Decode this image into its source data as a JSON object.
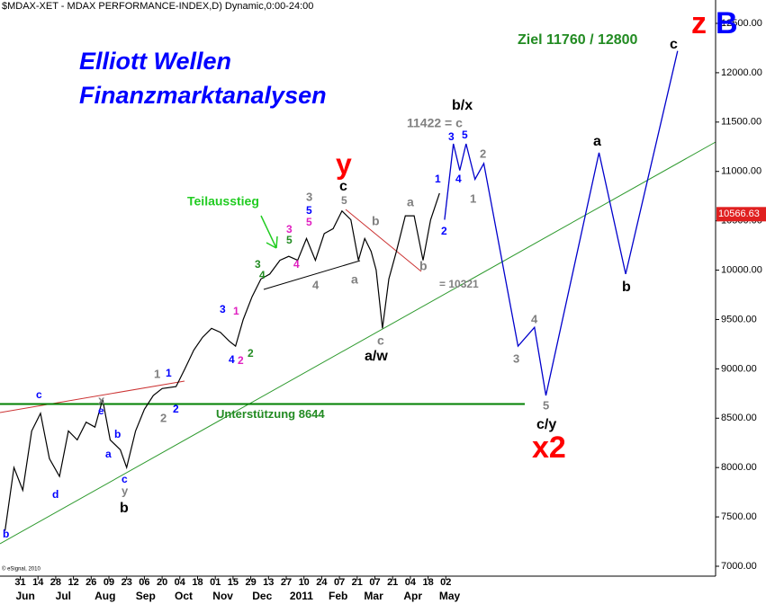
{
  "chart_data": {
    "type": "line",
    "title": "$MDAX-XET - MDAX PERFORMANCE-INDEX,D) Dynamic,0:00-24:00",
    "ylim": [
      7000,
      12500
    ],
    "yticks": [
      {
        "value": 7000,
        "label": "7000.00"
      },
      {
        "value": 7500,
        "label": "7500.00"
      },
      {
        "value": 8000,
        "label": "8000.00"
      },
      {
        "value": 8500,
        "label": "8500.00"
      },
      {
        "value": 9000,
        "label": "9000.00"
      },
      {
        "value": 9500,
        "label": "9500.00"
      },
      {
        "value": 10000,
        "label": "10000.00"
      },
      {
        "value": 10500,
        "label": "10500.00"
      },
      {
        "value": 11000,
        "label": "11000.00"
      },
      {
        "value": 11500,
        "label": "11500.00"
      },
      {
        "value": 12000,
        "label": "12000.00"
      },
      {
        "value": 12500,
        "label": "12500.00"
      }
    ],
    "xlim": [
      -16,
      549
    ],
    "xticks": [
      {
        "value": 0,
        "label": "31"
      },
      {
        "value": 14,
        "label": "14"
      },
      {
        "value": 28,
        "label": "28"
      },
      {
        "value": 42,
        "label": "12"
      },
      {
        "value": 56,
        "label": "26"
      },
      {
        "value": 70,
        "label": "09"
      },
      {
        "value": 84,
        "label": "23"
      },
      {
        "value": 98,
        "label": "06"
      },
      {
        "value": 112,
        "label": "20"
      },
      {
        "value": 126,
        "label": "04"
      },
      {
        "value": 140,
        "label": "18"
      },
      {
        "value": 154,
        "label": "01"
      },
      {
        "value": 168,
        "label": "15"
      },
      {
        "value": 182,
        "label": "29"
      },
      {
        "value": 196,
        "label": "13"
      },
      {
        "value": 210,
        "label": "27"
      },
      {
        "value": 224,
        "label": "10"
      },
      {
        "value": 238,
        "label": "24"
      },
      {
        "value": 252,
        "label": "07"
      },
      {
        "value": 266,
        "label": "21"
      },
      {
        "value": 280,
        "label": "07"
      },
      {
        "value": 294,
        "label": "21"
      },
      {
        "value": 308,
        "label": "04"
      },
      {
        "value": 322,
        "label": "18"
      },
      {
        "value": 336,
        "label": "02"
      }
    ],
    "month_ticks": [
      {
        "value": 4,
        "label": "Jun"
      },
      {
        "value": 34,
        "label": "Jul"
      },
      {
        "value": 67,
        "label": "Aug"
      },
      {
        "value": 99,
        "label": "Sep"
      },
      {
        "value": 129,
        "label": "Oct"
      },
      {
        "value": 160,
        "label": "Nov"
      },
      {
        "value": 191,
        "label": "Dec"
      },
      {
        "value": 222,
        "label": "2011"
      },
      {
        "value": 251,
        "label": "Feb"
      },
      {
        "value": 279,
        "label": "Mar"
      },
      {
        "value": 310,
        "label": "Apr"
      },
      {
        "value": 339,
        "label": "May"
      }
    ],
    "series": [
      {
        "color": "#000000",
        "x": [
          -12,
          -5,
          2,
          9,
          16,
          23,
          31,
          38,
          45,
          52,
          59,
          65,
          71,
          79,
          84,
          91,
          98,
          105,
          112,
          123,
          130,
          137,
          144,
          151,
          158,
          165,
          170,
          176,
          183,
          190,
          197,
          205,
          212,
          219,
          226,
          233,
          240,
          247,
          254,
          261,
          267,
          272,
          277,
          281,
          286,
          291,
          297,
          304,
          311,
          318,
          324,
          331
        ],
        "values": [
          7360,
          8000,
          7770,
          8370,
          8550,
          8090,
          7910,
          8370,
          8280,
          8460,
          8410,
          8690,
          8280,
          8180,
          8000,
          8370,
          8590,
          8730,
          8800,
          8820,
          9000,
          9190,
          9320,
          9410,
          9370,
          9280,
          9230,
          9500,
          9730,
          9910,
          9960,
          10100,
          10140,
          10100,
          10320,
          10100,
          10370,
          10420,
          10600,
          10510,
          10100,
          10320,
          10190,
          10000,
          9410,
          9910,
          10190,
          10550,
          10550,
          10100,
          10510,
          10780
        ]
      },
      {
        "color": "#0000cc",
        "x": [
          335,
          342,
          347,
          352,
          359,
          366,
          393,
          406,
          415,
          457,
          478,
          519
        ],
        "values": [
          10510,
          11280,
          11010,
          11280,
          10920,
          11080,
          9230,
          9420,
          8730,
          11190,
          9960,
          12220
        ]
      }
    ],
    "support": {
      "value": 8644,
      "label": "Unterstützung 8644"
    },
    "last_price": {
      "value": 10566.63,
      "label": "10566.63"
    },
    "annotations": [
      {
        "text": "Elliott Wellen",
        "color": "#0000ff"
      },
      {
        "text": "Finanzmarktanalysen",
        "color": "#0000ff"
      },
      {
        "text": "Ziel 11760 / 12800",
        "color": "#228b22"
      },
      {
        "text": "z",
        "color": "#ff0000"
      },
      {
        "text": "B",
        "color": "#0000ff"
      },
      {
        "text": "c",
        "color": "#000000"
      },
      {
        "text": "b/x",
        "color": "#000000"
      },
      {
        "text": "11422 = c",
        "color": "#808080"
      },
      {
        "text": "3",
        "color": "#0000ff"
      },
      {
        "text": "5",
        "color": "#0000ff"
      },
      {
        "text": "4",
        "color": "#0000ff"
      },
      {
        "text": "2",
        "color": "#808080"
      },
      {
        "text": "1",
        "color": "#808080"
      },
      {
        "text": "1",
        "color": "#0000ff"
      },
      {
        "text": "2",
        "color": "#0000ff"
      },
      {
        "text": "y",
        "color": "#ff0000"
      },
      {
        "text": "c",
        "color": "#000000"
      },
      {
        "text": "5",
        "color": "#808080"
      },
      {
        "text": "a",
        "color": "#808080"
      },
      {
        "text": "b",
        "color": "#808080"
      },
      {
        "text": "b",
        "color": "#808080"
      },
      {
        "text": "= 10321",
        "color": "#808080"
      },
      {
        "text": "a",
        "color": "#808080"
      },
      {
        "text": "c",
        "color": "#808080"
      },
      {
        "text": "a/w",
        "color": "#000000"
      },
      {
        "text": "Teilausstieg",
        "color": "#22cc22"
      },
      {
        "text": "3",
        "color": "#808080"
      },
      {
        "text": "5",
        "color": "#0000ff"
      },
      {
        "text": "5",
        "color": "#e020c0"
      },
      {
        "text": "3",
        "color": "#e020c0"
      },
      {
        "text": "5",
        "color": "#228b22"
      },
      {
        "text": "4",
        "color": "#e020c0"
      },
      {
        "text": "4",
        "color": "#808080"
      },
      {
        "text": "3",
        "color": "#228b22"
      },
      {
        "text": "4",
        "color": "#228b22"
      },
      {
        "text": "1",
        "color": "#e020c0"
      },
      {
        "text": "3",
        "color": "#0000ff"
      },
      {
        "text": "4",
        "color": "#0000ff"
      },
      {
        "text": "2",
        "color": "#e020c0"
      },
      {
        "text": "2",
        "color": "#228b22"
      },
      {
        "text": "1",
        "color": "#808080"
      },
      {
        "text": "1",
        "color": "#0000ff"
      },
      {
        "text": "2",
        "color": "#808080"
      },
      {
        "text": "2",
        "color": "#0000ff"
      },
      {
        "text": "x",
        "color": "#808080"
      },
      {
        "text": "e",
        "color": "#0000ff"
      },
      {
        "text": "c",
        "color": "#0000ff"
      },
      {
        "text": "a",
        "color": "#0000ff"
      },
      {
        "text": "b",
        "color": "#0000ff"
      },
      {
        "text": "c",
        "color": "#0000ff"
      },
      {
        "text": "y",
        "color": "#808080"
      },
      {
        "text": "b",
        "color": "#000000"
      },
      {
        "text": "d",
        "color": "#0000ff"
      },
      {
        "text": "b",
        "color": "#0000ff"
      },
      {
        "text": "3",
        "color": "#808080"
      },
      {
        "text": "4",
        "color": "#808080"
      },
      {
        "text": "5",
        "color": "#808080"
      },
      {
        "text": "c/y",
        "color": "#000000"
      },
      {
        "text": "x2",
        "color": "#ff0000"
      },
      {
        "text": "a",
        "color": "#000000"
      },
      {
        "text": "b",
        "color": "#000000"
      }
    ],
    "copyright": "© eSignal, 2010"
  }
}
